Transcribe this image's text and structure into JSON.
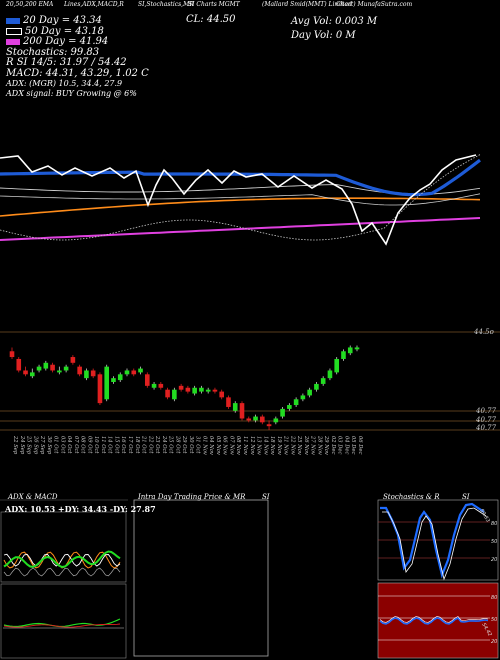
{
  "header": {
    "items": [
      "20,50,200 EMA",
      "Lines,ADX,MACD,R",
      "SI,Stochastics,MR",
      "SI Charts MGMT",
      "(Mallard Smid(MMT) Limited",
      "Chart) MunafaSutra.com"
    ]
  },
  "legend": [
    {
      "label": "20 Day = 43.34",
      "color": "#1e5bd6"
    },
    {
      "label": "50 Day = 43.18",
      "color": "#ffffff"
    },
    {
      "label": "200 Day = 41.94",
      "color": "#e040e0"
    }
  ],
  "stats": {
    "close": "CL: 44.50",
    "avg_vol": "Avg Vol: 0.003 M",
    "day_vol": "Day Vol: 0   M",
    "stochastics": "Stochastics: 99.83",
    "rsi": "R                SI 14/5: 31.97 / 54.42",
    "macd": "MACD: 44.31, 43.29, 1.02  C",
    "adx": "ADX:                    (MGR) 10.5,  34.4,  27.9",
    "adx_signal": "ADX  signal:                        BUY Growing @ 6%"
  },
  "price_labels": {
    "top": "44.5o",
    "bottom1": "40.77",
    "bottom2": "40.77",
    "bottom3": "40.77"
  },
  "panels": {
    "adx_macd_title": "ADX  & MACD",
    "adx_readout": "ADX: 10.53 +DY: 34.43 -DY: 27.87",
    "intra_title": "Intra  Day Trading Price  & MR",
    "si_title": "SI",
    "stoch_title": "Stochastics & R",
    "stoch_si": "SI",
    "stoch_ticks": [
      "80",
      "50",
      "20"
    ],
    "rsi_ticks": [
      "80",
      "50",
      "20"
    ],
    "stoch_value": "99.83",
    "rsi_value": "54.42"
  },
  "chart_data": {
    "type": "candlestick",
    "dates": [
      "22 Sep",
      "24 Sep",
      "25 Sep",
      "26 Sep",
      "27 Sep",
      "30 Sep",
      "01 Oct",
      "03 Oct",
      "04 Oct",
      "07 Oct",
      "08 Oct",
      "09 Oct",
      "10 Oct",
      "11 Oct",
      "14 Oct",
      "15 Oct",
      "16 Oct",
      "17 Oct",
      "18 Oct",
      "21 Oct",
      "22 Oct",
      "23 Oct",
      "24 Oct",
      "25 Oct",
      "28 Oct",
      "29 Oct",
      "30 Oct",
      "31 Oct",
      "01 Nov",
      "04 Nov",
      "05 Nov",
      "06 Nov",
      "07 Nov",
      "08 Nov",
      "11 Nov",
      "12 Nov",
      "13 Nov",
      "14 Nov",
      "18 Nov",
      "19 Nov",
      "21 Nov",
      "22 Nov",
      "25 Nov",
      "26 Nov",
      "27 Nov",
      "28 Nov",
      "29 Nov",
      "02 Dec",
      "03 Dec",
      "04 Dec",
      "05 Dec",
      "06 Dec"
    ],
    "open": [
      44.3,
      43.9,
      43.3,
      43.0,
      43.3,
      43.4,
      43.6,
      43.2,
      43.3,
      44.0,
      43.5,
      42.9,
      43.3,
      43.1,
      41.8,
      42.7,
      42.8,
      43.1,
      43.3,
      43.2,
      43.1,
      42.4,
      42.6,
      42.3,
      41.8,
      42.5,
      42.4,
      42.1,
      42.2,
      42.2,
      42.3,
      42.2,
      41.9,
      41.2,
      41.6,
      40.8,
      40.7,
      40.9,
      40.5,
      40.6,
      40.9,
      41.3,
      41.5,
      41.8,
      42.0,
      42.3,
      42.6,
      42.9,
      43.2,
      43.9,
      44.2,
      44.4
    ],
    "close": [
      44.0,
      43.3,
      43.1,
      43.2,
      43.5,
      43.7,
      43.3,
      43.3,
      43.5,
      43.7,
      43.1,
      43.3,
      43.0,
      41.6,
      43.5,
      42.9,
      43.1,
      43.3,
      43.1,
      43.4,
      42.5,
      42.6,
      42.4,
      41.9,
      42.3,
      42.3,
      42.2,
      42.4,
      42.4,
      42.3,
      42.2,
      41.9,
      41.4,
      41.6,
      40.8,
      40.7,
      40.9,
      40.6,
      40.4,
      40.8,
      41.3,
      41.5,
      41.8,
      42.0,
      42.3,
      42.6,
      42.9,
      43.3,
      43.9,
      44.3,
      44.5,
      44.5
    ],
    "high": [
      44.5,
      44.0,
      43.5,
      43.4,
      43.6,
      43.8,
      43.7,
      43.5,
      43.6,
      44.1,
      43.6,
      43.4,
      43.4,
      43.2,
      43.6,
      43.0,
      43.2,
      43.4,
      43.4,
      43.5,
      43.2,
      42.7,
      42.7,
      42.4,
      42.4,
      42.6,
      42.5,
      42.5,
      42.5,
      42.4,
      42.4,
      42.3,
      42.0,
      41.7,
      41.7,
      40.9,
      41.0,
      41.0,
      40.7,
      40.9,
      41.4,
      41.6,
      41.9,
      42.1,
      42.4,
      42.7,
      43.0,
      43.4,
      44.0,
      44.4,
      44.6,
      44.6
    ],
    "low": [
      43.9,
      43.2,
      43.0,
      42.9,
      43.2,
      43.3,
      43.2,
      43.1,
      43.2,
      43.6,
      43.0,
      42.8,
      42.9,
      41.5,
      41.7,
      42.6,
      42.7,
      43.0,
      43.0,
      43.1,
      42.4,
      42.3,
      42.3,
      41.8,
      41.7,
      42.2,
      42.1,
      42.0,
      42.1,
      42.1,
      42.1,
      41.8,
      41.3,
      41.1,
      40.7,
      40.6,
      40.6,
      40.5,
      40.2,
      40.5,
      40.8,
      41.2,
      41.4,
      41.7,
      41.9,
      42.2,
      42.5,
      42.8,
      43.1,
      43.8,
      44.1,
      44.3
    ],
    "ylim": [
      40.2,
      45.2
    ]
  }
}
